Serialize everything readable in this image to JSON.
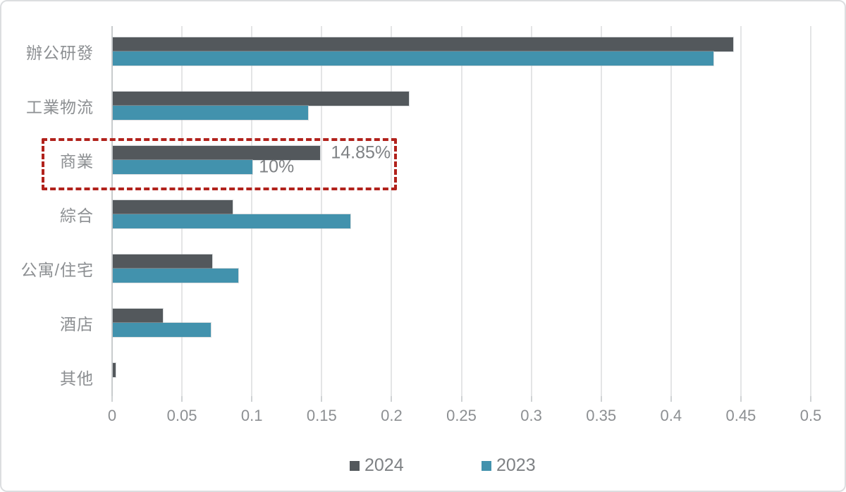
{
  "chart_data": {
    "type": "bar",
    "orientation": "horizontal",
    "title": "",
    "categories": [
      "辦公研發",
      "工業物流",
      "商業",
      "綜合",
      "公寓/住宅",
      "酒店",
      "其他"
    ],
    "series": [
      {
        "name": "2024",
        "color": "#53585C",
        "values": [
          0.444,
          0.212,
          0.1485,
          0.086,
          0.071,
          0.036,
          0.002
        ]
      },
      {
        "name": "2023",
        "color": "#4292AD",
        "values": [
          0.43,
          0.14,
          0.1,
          0.17,
          0.09,
          0.07,
          0
        ]
      }
    ],
    "xlim": [
      0,
      0.5
    ],
    "xtick_values": [
      0,
      0.05,
      0.1,
      0.15,
      0.2,
      0.25,
      0.3,
      0.35,
      0.4,
      0.45,
      0.5
    ],
    "xtick_labels": [
      "0",
      "0.05",
      "0.1",
      "0.15",
      "0.2",
      "0.25",
      "0.3",
      "0.35",
      "0.4",
      "0.45",
      "0.5"
    ],
    "grid": true,
    "legend_position": "bottom",
    "annotations": [
      {
        "text": "14.85%",
        "category": "商業",
        "series": "2024",
        "value": 0.1485
      },
      {
        "text": "10%",
        "category": "商業",
        "series": "2023",
        "value": 0.1
      }
    ],
    "highlight_box": {
      "category": "商業",
      "style": "dashed",
      "color": "#B1221C"
    }
  },
  "colors": {
    "background": "#FFFFFF",
    "frame_border": "#DCDEE0",
    "gridline": "#E4E5E6",
    "axis_line": "#C8CBCD",
    "tick_mark": "#CFD2D4",
    "label_gray": "#8C8F92",
    "annotation_gray": "#7E8184",
    "highlight_red": "#B1221C",
    "series_2024": "#53585C",
    "series_2023": "#4292AD"
  }
}
